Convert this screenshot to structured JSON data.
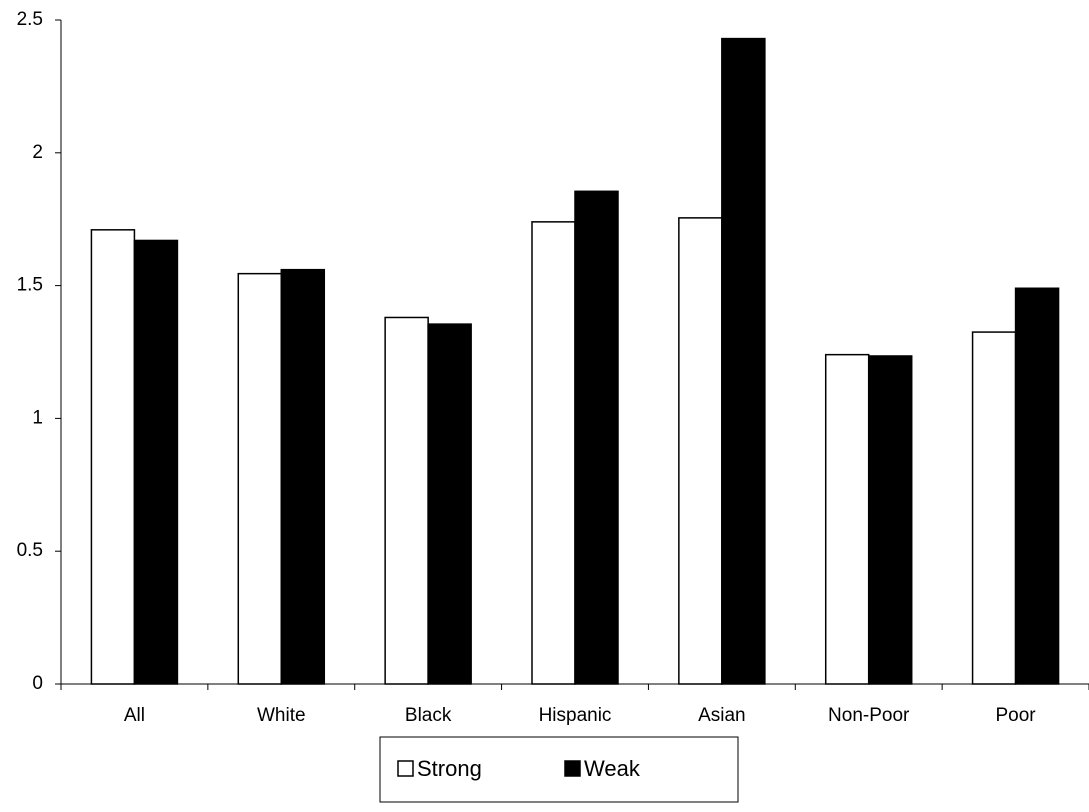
{
  "chart_data": {
    "type": "bar",
    "categories": [
      "All",
      "White",
      "Black",
      "Hispanic",
      "Asian",
      "Non-Poor",
      "Poor"
    ],
    "series": [
      {
        "name": "Strong",
        "color": "#ffffff",
        "values": [
          1.71,
          1.545,
          1.38,
          1.74,
          1.755,
          1.24,
          1.325
        ]
      },
      {
        "name": "Weak",
        "color": "#000000",
        "values": [
          1.67,
          1.56,
          1.355,
          1.855,
          2.43,
          1.235,
          1.49
        ]
      }
    ],
    "ylim": [
      0,
      2.5
    ],
    "yticks": [
      0,
      0.5,
      1,
      1.5,
      2,
      2.5
    ],
    "grid": false,
    "legend": "bottom"
  }
}
